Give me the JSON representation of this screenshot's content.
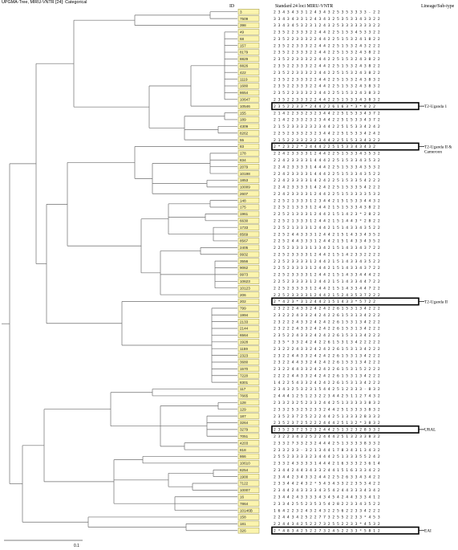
{
  "title": "UPGMA-Tree, MIRU-VNTR [24]: Categorical",
  "headers": {
    "id": "ID",
    "profile": "Standard 24 loci MIRU-VNTR",
    "lineage": "Lineage/Sub-type"
  },
  "scale_label": "0.1",
  "isolates": [
    {
      "id": "3",
      "profile": "2 3 4 3 4 3 3 1 2 4 3 4 3 2 5 3 5 3 3 3 3 - 2 2"
    },
    {
      "id": "7509",
      "profile": "3 3 4 3 4 3 3 1 2 4 3 4 3 2 5 3 5 3 3 4 3 3 2 2"
    },
    {
      "id": "398",
      "profile": "3 3 4 3 4 5 3 2 3 1 2 4 3 2 5 3 3 3 3 3 3 3 2 2"
    },
    {
      "id": "49",
      "profile": "2 3 5 2 2 3 3 3 2 2 4 4 2 2 5 1 5 3 4 5 3 3 2 2"
    },
    {
      "id": "68",
      "profile": "2 3 5 2 2 3 3 3 2 2 4 4 2 2 5 1 5 3 2 4 1 8 2 2"
    },
    {
      "id": "157",
      "profile": "2 3 5 2 2 3 3 3 2 2 4 4 2 2 5 1 5 3 2 4 3 2 2 2"
    },
    {
      "id": "8179",
      "profile": "2 3 5 2 2 3 3 3 2 2 4 4 2 2 5 1 5 3 2 4 3 8 2 2"
    },
    {
      "id": "8829",
      "profile": "2 3 5 2 2 3 3 3 2 2 4 4 2 2 5 1 5 3 2 4 3 8 2 2"
    },
    {
      "id": "8826",
      "profile": "2 3 5 2 2 3 3 3 2 2 4 4 2 2 5 1 5 3 2 4 3 8 2 2"
    },
    {
      "id": "422",
      "profile": "2 3 5 2 2 3 3 3 2 2 4 4 2 2 5 1 5 3 2 4 3 8 2 2"
    },
    {
      "id": "1119",
      "profile": "2 3 5 2 2 3 3 3 2 2 4 4 2 2 5 1 5 3 2 4 3 8 3 2"
    },
    {
      "id": "1680",
      "profile": "2 3 5 2 2 3 3 3 2 2 4 4 2 2 5 1 5 3 2 4 3 8 3 2"
    },
    {
      "id": "8654",
      "profile": "2 3 5 2 2 3 3 3 2 2 4 4 2 2 5 1 5 3 2 4 3 8 3 2"
    },
    {
      "id": "10647",
      "profile": "2 3 5 2 2 3 3 3 2 2 4 4 2 2 5 1 5 3 3 4 3 8 3 2"
    },
    {
      "id": "10546",
      "profile": "2 3 5 2 2 3 3 * 2 4 4 2 2 6 1 6 3 * 3 * 8 2 2"
    },
    {
      "id": "155",
      "profile": "2 1 4 2 2 3 3 2 3 2 3 4 4 2 2 5 1 5 3 3 4 3 7 2"
    },
    {
      "id": "189",
      "profile": "2 1 4 2 2 3 3 2 3 2 3 4 4 2 2 5 1 5 3 3 4 3 7 2"
    },
    {
      "id": "4309",
      "profile": "2 1 5 2 3 3 3 2 3 2 3 4 4 2 2 5 1 5 3 3 4 2 4 2"
    },
    {
      "id": "8262",
      "profile": "2 2 5 2 3 3 3 2 3 2 3 4 4 2 2 5 1 5 3 3 4 2 4 2"
    },
    {
      "id": "55",
      "profile": "2 1 5 2 2 3 3 2 3 2 3 4 4 2 2 5 1 5 3 3 4 3 2 2"
    },
    {
      "id": "83",
      "profile": "2 * 2 3 2 2 * 2 4 4 4 2 2 5 1 5 3 3 4 3 4 3 2"
    },
    {
      "id": "178",
      "profile": "2 2 4 2 3 3 3 3 1 2 4 4 2 2 5 1 5 3 3 4 3 5 3 2"
    },
    {
      "id": "834",
      "profile": "2 2 4 2 3 3 3 3 1 4 4 4 2 2 5 1 5 3 3 4 3 5 3 2"
    },
    {
      "id": "2079",
      "profile": "2 2 4 2 3 3 3 3 1 4 4 4 2 2 5 1 5 3 3 4 3 5 3 2"
    },
    {
      "id": "10198",
      "profile": "2 2 4 2 3 3 3 3 1 4 4 4 2 2 5 1 5 3 3 4 3 5 2 2"
    },
    {
      "id": "1853",
      "profile": "2 2 4 2 3 3 3 3 1 4 2 4 2 2 5 1 5 3 3 5 4 2 2 2"
    },
    {
      "id": "10009",
      "profile": "2 2 4 2 3 3 3 3 1 4 2 4 2 2 5 1 5 3 3 5 4 2 2 2"
    },
    {
      "id": "2607",
      "profile": "2 2 4 2 3 3 3 3 1 2 4 4 2 2 5 1 5 3 3 3 3 5 3 2"
    },
    {
      "id": "148",
      "profile": "2 2 5 2 1 3 3 3 1 2 3 4 4 2 1 5 1 5 3 3 4 4 3 2"
    },
    {
      "id": "175",
      "profile": "2 2 5 2 1 3 3 3 1 2 4 4 2 1 5 1 5 3 3 4 3 8 2 2"
    },
    {
      "id": "1961",
      "profile": "2 2 5 2 1 3 3 3 1 2 4 4 2 1 5 1 4 2 3 * 2 8 2 2"
    },
    {
      "id": "6630",
      "profile": "2 2 5 2 1 3 3 3 1 2 4 4 2 1 5 1 4 4 3 * 2 8 2 2"
    },
    {
      "id": "1733",
      "profile": "2 2 5 2 1 3 3 3 1 2 4 4 2 1 5 1 4 3 3 4 3 5 2 2"
    },
    {
      "id": "8569",
      "profile": "2 2 5 2 4 4 3 3 3 1 2 4 4 2 1 5 1 4 3 3 4 3 5 2"
    },
    {
      "id": "8567",
      "profile": "2 2 5 2 4 4 3 3 3 1 2 4 4 2 1 5 1 4 3 3 4 3 5 2"
    },
    {
      "id": "2405",
      "profile": "2 2 5 2 3 3 3 3 1 3 3 4 2 1 5 1 4 3 3 4 3 7 2 2"
    },
    {
      "id": "9932",
      "profile": "2 2 5 2 3 3 3 3 1 2 4 4 2 1 5 1 4 2 3 3 2 2 2 2"
    },
    {
      "id": "3556",
      "profile": "2 2 5 2 3 3 3 3 1 2 4 4 2 1 5 1 4 3 3 4 3 5 2 2"
    },
    {
      "id": "9062",
      "profile": "2 2 5 2 3 3 3 3 1 2 4 4 2 1 5 1 4 3 3 4 3 7 2 2"
    },
    {
      "id": "9973",
      "profile": "2 2 5 2 3 3 3 3 1 2 4 4 2 1 5 1 4 3 3 4 4 4 2 2"
    },
    {
      "id": "10623",
      "profile": "2 2 5 2 3 3 3 3 1 2 4 4 2 1 5 1 4 3 3 4 4 7 2 2"
    },
    {
      "id": "10123",
      "profile": "2 2 5 2 3 3 3 3 1 2 4 4 2 1 5 1 4 3 3 4 4 7 2 2"
    },
    {
      "id": "206",
      "profile": "2 2 5 2 3 3 3 3 1 2 4 4 2 1 5 2 4 3 5 3 7 2 2 2"
    },
    {
      "id": "202",
      "profile": "2 * 4 2 3 * 3 1 2 4 4 2 1 5 1 4 3 3 * 5 7 2 2"
    },
    {
      "id": "799",
      "profile": "2 3 2 2 2 4 3 3 2 4 2 4 2 2 6 1 5 3 1 3 4 2 2 2"
    },
    {
      "id": "1994",
      "profile": "2 3 2 2 2 4 3 3 2 4 2 4 2 2 6 1 5 3 1 3 4 2 2 2"
    },
    {
      "id": "2133",
      "profile": "2 3 2 2 2 4 3 3 2 4 2 4 2 2 6 1 5 3 1 3 4 2 2 2"
    },
    {
      "id": "2144",
      "profile": "2 3 2 2 2 4 3 3 2 4 2 4 2 2 6 1 5 3 1 3 4 2 2 2"
    },
    {
      "id": "6564",
      "profile": "2 3 5 2 2 4 3 3 2 4 2 4 2 2 6 1 5 3 1 3 4 2 2 2"
    },
    {
      "id": "1928",
      "profile": "2 3 5 * 3 3 2 4 2 4 2 2 6 1 5 3 1 3 4 2 2 2 2 2"
    },
    {
      "id": "1159",
      "profile": "2 3 2 2 2 4 3 3 2 4 2 4 2 2 6 1 5 3 1 3 4 2 2 2"
    },
    {
      "id": "2323",
      "profile": "2 3 2 2 4 4 3 3 2 4 2 4 2 2 6 1 5 3 1 3 4 2 2 2"
    },
    {
      "id": "3680",
      "profile": "2 3 2 2 4 4 3 3 2 4 2 4 2 2 6 1 5 3 1 3 4 2 2 2"
    },
    {
      "id": "1570",
      "profile": "2 3 2 2 4 4 3 3 2 4 2 4 2 2 6 1 5 3 1 5 2 2 2 2"
    },
    {
      "id": "7220",
      "profile": "2 2 2 2 4 4 3 3 2 4 2 4 2 2 6 1 5 3 1 3 4 2 2 2"
    },
    {
      "id": "8301",
      "profile": "1 4 2 2 5 4 3 3 2 4 2 4 2 2 6 1 5 3 1 3 4 2 2 2"
    },
    {
      "id": "117",
      "profile": "2 3 4 3 2 5 3 2 3 1 5 4 4 2 5 1 2 3 3 3 - 8 3 2"
    },
    {
      "id": "7665",
      "profile": "2 4 4 4 1 2 5 1 2 3 2 2 3 4 4 2 5 1 1 2 7 4 3 2"
    },
    {
      "id": "128",
      "profile": "2 3 3 2 3 2 5 2 3 3 2 4 4 2 5 1 3 3 3 3 3 8 3 2"
    },
    {
      "id": "129",
      "profile": "2 3 3 2 5 3 2 5 2 3 3 2 4 4 2 5 1 3 3 3 3 8 3 2"
    },
    {
      "id": "187",
      "profile": "2 3 5 2 3 7 2 5 2 2 2 4 4 2 5 1 3 3 3 2 8 3 3 2"
    },
    {
      "id": "3264",
      "profile": "2 3 5 2 3 7 2 5 2 2 2 4 4 4 2 5 1 3 2 * 3 8 3 2"
    },
    {
      "id": "3279",
      "profile": "2 3 5 2 3 7 2 5 2 3 2 4 4 2 5 1 3 2 3 2 8 3 3 2"
    },
    {
      "id": "7051",
      "profile": "2 3 2 2 3 4 3 2 5 2 2 4 4 4 2 5 1 3 2 3 3 8 3 2"
    },
    {
      "id": "4203",
      "profile": "2 3 3 2 7 3 3 2 3 2 4 4 4 2 5 1 3 3 3 3 8 3 3 2"
    },
    {
      "id": "818",
      "profile": "2 3 3 2 3 3 - 3 2 1 3 4 4 1 7 8 3 4 3 1 3 4 3 2"
    },
    {
      "id": "866",
      "profile": "2 5 5 2 3 3 3 3 2 3 4 4 4 2 5 1 3 3 3 5 5 2 4 2"
    },
    {
      "id": "10610",
      "profile": "2 3 3 2 4 3 3 3 3 1 4 4 4 2 1 6 3 3 3 2 3 6 1 4"
    },
    {
      "id": "8254",
      "profile": "2 3 4 4 2 4 4 3 4 3 3 2 4 4 1 5 1 6 3 3 3 4 2 2"
    },
    {
      "id": "1900",
      "profile": "2 3 4 4 2 3 4 3 3 2 4 4 2 2 5 2 6 3 3 4 3 4 2 2"
    },
    {
      "id": "7122",
      "profile": "2 3 3 4 4 2 4 3 2 * 5 4 3 4 3 3 2 2 3 5 3 4 2 2"
    },
    {
      "id": "10007",
      "profile": "2 3 4 4 2 4 3 3 3 3 4 3 5 4 2 4 4 3 3 3 4 3 4 2"
    },
    {
      "id": "16",
      "profile": "2 3 4 4 2 4 3 3 3 3 4 3 4 5 4 2 4 4 3 3 3 4 1 2"
    },
    {
      "id": "7864",
      "profile": "2 3 3 4 2 5 5 2 3 5 3 5 4 2 8 2 2 3 3 4 3 5 2 2"
    },
    {
      "id": "10146B",
      "profile": "1 6 4 2 2 3 2 4 3 2 4 3 2 2 5 6 2 2 3 3 4 2 2 2"
    },
    {
      "id": "158",
      "profile": "2 2 4 4 3 4 2 5 2 2 7 7 3 2 5 5 2 2 3 3 * 4 5 3"
    },
    {
      "id": "181",
      "profile": "2 2 4 4 3 4 2 5 2 2 7 3 2 5 5 2 2 3 3 * 4 5 3 2"
    },
    {
      "id": "326",
      "profile": "2 * 4 8 3 4 2 5 2 2 7 3 2 4 5 2 2 3 3 * 5 8 1 2"
    }
  ],
  "highlights": [
    {
      "row": 14,
      "label": "T2-Uganda 1"
    },
    {
      "row": 20,
      "label": "T2-Uganda II & Cameroon"
    },
    {
      "row": 43,
      "label": "T2-Uganda II"
    },
    {
      "row": 62,
      "label": "URAL"
    },
    {
      "row": 77,
      "label": "EAI"
    }
  ]
}
